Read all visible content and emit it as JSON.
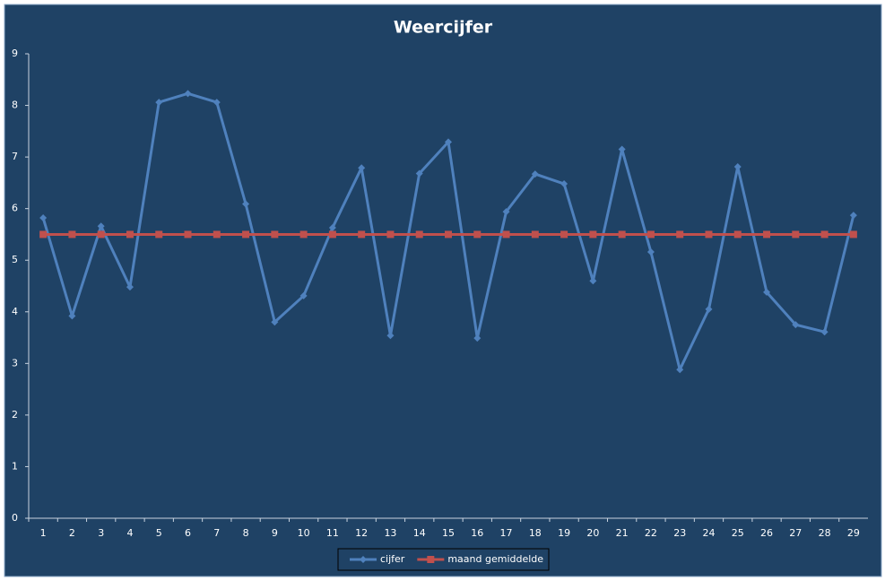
{
  "chart_data": {
    "type": "line",
    "title": "Weercijfer",
    "categories": [
      "1",
      "2",
      "3",
      "4",
      "5",
      "6",
      "7",
      "8",
      "9",
      "10",
      "11",
      "12",
      "13",
      "14",
      "15",
      "16",
      "17",
      "18",
      "19",
      "20",
      "21",
      "22",
      "23",
      "24",
      "25",
      "26",
      "27",
      "28",
      "29"
    ],
    "series": [
      {
        "name": "cijfer",
        "color": "#4f81bd",
        "marker": "diamond",
        "values": [
          5.82,
          3.92,
          5.66,
          4.48,
          8.06,
          8.23,
          8.06,
          6.09,
          3.8,
          4.31,
          5.63,
          6.79,
          3.54,
          6.68,
          7.29,
          3.49,
          5.94,
          6.67,
          6.48,
          4.6,
          7.15,
          5.16,
          2.88,
          4.05,
          6.81,
          4.38,
          3.75,
          3.61,
          5.87
        ]
      },
      {
        "name": "maand gemiddelde",
        "color": "#c0504d",
        "marker": "square",
        "values": [
          5.5,
          5.5,
          5.5,
          5.5,
          5.5,
          5.5,
          5.5,
          5.5,
          5.5,
          5.5,
          5.5,
          5.5,
          5.5,
          5.5,
          5.5,
          5.5,
          5.5,
          5.5,
          5.5,
          5.5,
          5.5,
          5.5,
          5.5,
          5.5,
          5.5,
          5.5,
          5.5,
          5.5,
          5.5
        ]
      }
    ],
    "ylim": [
      0,
      9
    ],
    "yticks": [
      0,
      1,
      2,
      3,
      4,
      5,
      6,
      7,
      8,
      9
    ],
    "grid": false,
    "legend": "bottom"
  }
}
